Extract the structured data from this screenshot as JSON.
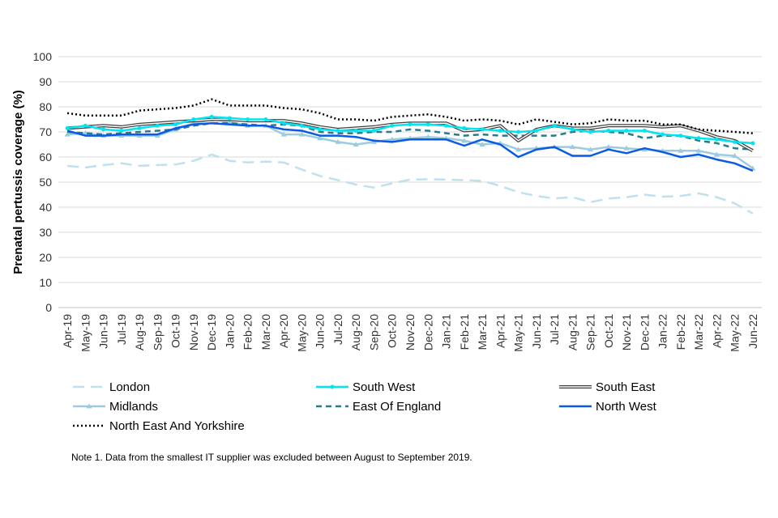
{
  "chart_data": {
    "type": "line",
    "title": "",
    "xlabel": "",
    "ylabel": "Prenatal pertussis coverage (%)",
    "ylim": [
      0,
      100
    ],
    "yticks": [
      0,
      10,
      20,
      30,
      40,
      50,
      60,
      70,
      80,
      90,
      100
    ],
    "grid": true,
    "legend_position": "bottom",
    "categories": [
      "Apr-19",
      "May-19",
      "Jun-19",
      "Jul-19",
      "Aug-19",
      "Sep-19",
      "Oct-19",
      "Nov-19",
      "Dec-19",
      "Jan-20",
      "Feb-20",
      "Mar-20",
      "Apr-20",
      "May-20",
      "Jun-20",
      "Jul-20",
      "Aug-20",
      "Sep-20",
      "Oct-20",
      "Nov-20",
      "Dec-20",
      "Jan-21",
      "Feb-21",
      "Mar-21",
      "Apr-21",
      "May-21",
      "Jun-21",
      "Jul-21",
      "Aug-21",
      "Sep-21",
      "Oct-21",
      "Nov-21",
      "Dec-21",
      "Jan-22",
      "Feb-22",
      "Mar-22",
      "Apr-22",
      "May-22",
      "Jun-22"
    ],
    "series": [
      {
        "name": "London",
        "color": "#bfe0ee",
        "style": "dashed-long",
        "values": [
          56.5,
          55.8,
          56.8,
          57.5,
          56.5,
          56.8,
          57.0,
          58.5,
          61.0,
          58.5,
          57.8,
          58.2,
          57.8,
          55.0,
          52.5,
          50.8,
          49.0,
          47.8,
          49.5,
          51.0,
          51.2,
          51.0,
          50.8,
          50.5,
          48.5,
          46.0,
          44.5,
          43.5,
          44.0,
          42.0,
          43.5,
          44.0,
          45.0,
          44.2,
          44.5,
          45.5,
          44.0,
          41.5,
          37.5
        ]
      },
      {
        "name": "South West",
        "color": "#00e5f0",
        "style": "solid-marker",
        "values": [
          71.5,
          72.5,
          71.0,
          70.5,
          71.5,
          72.5,
          73.0,
          75.0,
          76.0,
          75.5,
          75.0,
          75.0,
          73.5,
          72.5,
          71.0,
          70.5,
          70.5,
          70.5,
          72.5,
          73.0,
          73.0,
          72.5,
          71.5,
          71.0,
          70.5,
          70.0,
          70.5,
          72.5,
          71.0,
          70.0,
          70.5,
          70.5,
          70.5,
          69.0,
          68.5,
          67.5,
          67.0,
          66.0,
          65.5
        ]
      },
      {
        "name": "South East",
        "color": "#3f3f3f",
        "style": "double",
        "values": [
          71.5,
          72.0,
          72.5,
          72.0,
          73.0,
          73.5,
          74.0,
          74.5,
          75.0,
          75.0,
          74.5,
          74.5,
          74.5,
          73.5,
          72.0,
          71.0,
          71.5,
          72.0,
          73.0,
          73.5,
          73.5,
          73.5,
          70.5,
          71.0,
          72.5,
          66.5,
          71.0,
          72.5,
          71.5,
          71.5,
          72.5,
          72.5,
          72.5,
          72.0,
          72.5,
          70.5,
          68.0,
          66.5,
          62.5
        ]
      },
      {
        "name": "Midlands",
        "color": "#9ccbe0",
        "style": "solid-triangle",
        "values": [
          69.0,
          69.5,
          68.5,
          68.5,
          68.5,
          68.5,
          71.0,
          73.5,
          75.0,
          74.0,
          72.5,
          72.5,
          69.0,
          69.0,
          67.5,
          66.0,
          65.0,
          66.0,
          67.0,
          67.5,
          68.0,
          67.5,
          66.5,
          65.0,
          65.5,
          63.0,
          63.5,
          64.0,
          64.0,
          63.0,
          64.0,
          63.5,
          63.0,
          62.5,
          62.5,
          62.5,
          61.0,
          60.5,
          55.5
        ]
      },
      {
        "name": "East Of England",
        "color": "#2b7a8a",
        "style": "dashed",
        "values": [
          70.0,
          69.5,
          69.0,
          69.5,
          70.0,
          70.5,
          71.0,
          72.5,
          73.5,
          73.5,
          73.0,
          72.5,
          73.0,
          72.5,
          70.0,
          69.5,
          69.5,
          70.0,
          70.0,
          71.0,
          70.5,
          69.5,
          68.5,
          69.0,
          68.5,
          68.5,
          68.5,
          68.5,
          70.0,
          70.5,
          70.0,
          69.5,
          67.5,
          68.5,
          68.5,
          66.5,
          65.5,
          63.5,
          63.0
        ]
      },
      {
        "name": "North West",
        "color": "#0a5ae6",
        "style": "solid",
        "values": [
          70.5,
          68.5,
          68.5,
          69.0,
          69.0,
          69.0,
          71.5,
          73.0,
          73.5,
          73.0,
          72.5,
          72.5,
          71.0,
          70.5,
          68.5,
          68.5,
          68.0,
          66.5,
          66.0,
          67.0,
          67.0,
          67.0,
          64.5,
          67.0,
          65.0,
          60.0,
          63.0,
          64.0,
          60.5,
          60.5,
          63.0,
          61.5,
          63.5,
          62.0,
          60.0,
          61.0,
          59.0,
          57.5,
          54.5
        ]
      },
      {
        "name": "North East And Yorkshire",
        "color": "#000000",
        "style": "dotted",
        "values": [
          77.5,
          76.5,
          76.5,
          76.5,
          78.5,
          79.0,
          79.5,
          80.5,
          83.0,
          80.5,
          80.5,
          80.5,
          79.5,
          79.0,
          77.5,
          75.0,
          75.0,
          74.5,
          76.0,
          76.5,
          77.0,
          76.0,
          74.5,
          75.0,
          74.5,
          73.0,
          75.0,
          74.0,
          73.0,
          73.5,
          75.0,
          74.5,
          74.5,
          73.0,
          73.0,
          71.0,
          70.5,
          70.0,
          69.5
        ]
      }
    ],
    "note": "Note 1. Data from the smallest IT supplier was excluded between August to September 2019."
  }
}
